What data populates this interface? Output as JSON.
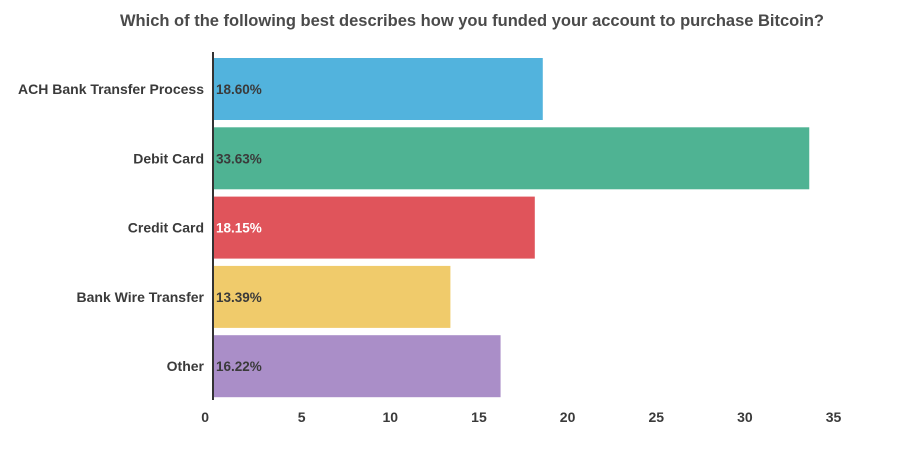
{
  "chart_data": {
    "type": "bar",
    "orientation": "horizontal",
    "title": "Which of the following best describes how you funded your account to purchase Bitcoin?",
    "xlabel": "",
    "ylabel": "",
    "xlim": [
      0,
      35
    ],
    "xticks": [
      0,
      5,
      10,
      15,
      20,
      25,
      30,
      35
    ],
    "grid": false,
    "categories": [
      "ACH Bank Transfer Process",
      "Debit Card",
      "Credit Card",
      "Bank Wire Transfer",
      "Other"
    ],
    "values": [
      18.6,
      33.63,
      18.15,
      13.39,
      16.22
    ],
    "value_labels": [
      "18.60%",
      "33.63%",
      "18.15%",
      "13.39%",
      "16.22%"
    ],
    "colors": [
      "#52b3dd",
      "#4fb393",
      "#e0545b",
      "#f0cb6b",
      "#aa8ec8"
    ],
    "label_colors": [
      "#3a3a3a",
      "#3a3a3a",
      "#ffffff",
      "#3a3a3a",
      "#3a3a3a"
    ],
    "axis_color": "#333333"
  }
}
